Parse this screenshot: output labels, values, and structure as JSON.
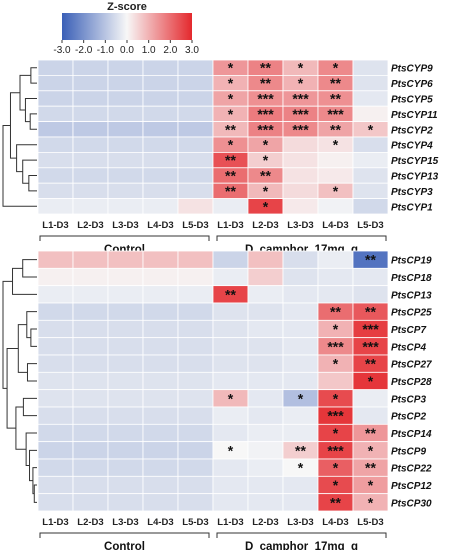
{
  "chart_data": [
    {
      "type": "heatmap",
      "title": "Z-score",
      "colorbar": {
        "ticks": [
          "-3.0",
          "-2.0",
          "-1.0",
          "0.0",
          "1.0",
          "2.0",
          "3.0"
        ],
        "range": [
          -3,
          3
        ],
        "colors": {
          "low": "#3a5fb7",
          "mid": "#f7f7f7",
          "high": "#e4282d"
        }
      },
      "columns": [
        "L1-D3",
        "L2-D3",
        "L3-D3",
        "L4-D3",
        "L5-D3",
        "L1-D3",
        "L2-D3",
        "L3-D3",
        "L4-D3",
        "L5-D3"
      ],
      "groups": [
        "Control",
        "D_camphor_17mg_g"
      ],
      "rows": [
        "PtsCYP9",
        "PtsCYP6",
        "PtsCYP5",
        "PtsCYP11",
        "PtsCYP2",
        "PtsCYP4",
        "PtsCYP15",
        "PtsCYP13",
        "PtsCYP3",
        "PtsCYP1"
      ],
      "values": [
        [
          -0.7,
          -0.7,
          -0.7,
          -0.7,
          -0.7,
          1.4,
          1.7,
          0.9,
          1.6,
          -0.4
        ],
        [
          -0.7,
          -0.7,
          -0.7,
          -0.7,
          -0.7,
          1.0,
          1.6,
          1.0,
          1.6,
          -0.4
        ],
        [
          -0.7,
          -0.7,
          -0.7,
          -0.7,
          -0.7,
          1.2,
          1.5,
          1.4,
          1.5,
          -0.3
        ],
        [
          -0.6,
          -0.6,
          -0.6,
          -0.6,
          -0.6,
          1.0,
          1.8,
          1.7,
          1.6,
          0.1
        ],
        [
          -0.9,
          -0.9,
          -0.9,
          -0.9,
          -0.9,
          0.9,
          1.7,
          1.6,
          1.2,
          0.7
        ],
        [
          -0.6,
          -0.6,
          -0.6,
          -0.6,
          -0.6,
          1.5,
          1.2,
          0.4,
          0.3,
          -0.5
        ],
        [
          -0.5,
          -0.5,
          -0.5,
          -0.5,
          -0.5,
          2.4,
          0.6,
          0.3,
          0.1,
          -0.2
        ],
        [
          -0.6,
          -0.6,
          -0.6,
          -0.6,
          -0.6,
          2.0,
          1.6,
          0.3,
          0.2,
          -0.4
        ],
        [
          -0.5,
          -0.5,
          -0.5,
          -0.5,
          -0.5,
          2.0,
          0.9,
          0.4,
          0.8,
          -0.4
        ],
        [
          -0.2,
          -0.2,
          -0.2,
          -0.2,
          0.3,
          -0.2,
          2.6,
          0.2,
          -0.1,
          -0.6
        ]
      ],
      "stars": [
        [
          "",
          "",
          "",
          "",
          "",
          "*",
          "**",
          "*",
          "*",
          ""
        ],
        [
          "",
          "",
          "",
          "",
          "",
          "*",
          "**",
          "*",
          "**",
          ""
        ],
        [
          "",
          "",
          "",
          "",
          "",
          "*",
          "***",
          "***",
          "**",
          ""
        ],
        [
          "",
          "",
          "",
          "",
          "",
          "*",
          "***",
          "***",
          "***",
          ""
        ],
        [
          "",
          "",
          "",
          "",
          "",
          "**",
          "***",
          "***",
          "**",
          "*"
        ],
        [
          "",
          "",
          "",
          "",
          "",
          "*",
          "*",
          "",
          "*",
          ""
        ],
        [
          "",
          "",
          "",
          "",
          "",
          "**",
          "*",
          "",
          "",
          ""
        ],
        [
          "",
          "",
          "",
          "",
          "",
          "**",
          "**",
          "",
          "",
          ""
        ],
        [
          "",
          "",
          "",
          "",
          "",
          "**",
          "*",
          "",
          "*",
          ""
        ],
        [
          "",
          "",
          "",
          "",
          "",
          "",
          "*",
          "",
          "",
          ""
        ]
      ]
    },
    {
      "type": "heatmap",
      "columns": [
        "L1-D3",
        "L2-D3",
        "L3-D3",
        "L4-D3",
        "L5-D3",
        "L1-D3",
        "L2-D3",
        "L3-D3",
        "L4-D3",
        "L5-D3"
      ],
      "groups": [
        "Control",
        "D_camphor_17mg_g"
      ],
      "rows": [
        "PtsCP19",
        "PtsCP18",
        "PtsCP13",
        "PtsCP25",
        "PtsCP7",
        "PtsCP4",
        "PtsCP27",
        "PtsCP28",
        "PtsCP3",
        "PtsCP2",
        "PtsCP14",
        "PtsCP9",
        "PtsCP22",
        "PtsCP12",
        "PtsCP30"
      ],
      "values": [
        [
          0.8,
          0.8,
          0.8,
          0.8,
          0.8,
          -0.7,
          0.8,
          -0.5,
          -0.2,
          -2.6
        ],
        [
          0.1,
          0.1,
          0.1,
          0.1,
          0.1,
          -0.2,
          0.6,
          -0.4,
          -0.3,
          -0.3
        ],
        [
          -0.2,
          -0.2,
          -0.2,
          -0.2,
          -0.2,
          2.6,
          -0.2,
          -0.3,
          -0.3,
          -0.4
        ],
        [
          -0.6,
          -0.6,
          -0.6,
          -0.6,
          -0.6,
          -0.4,
          -0.4,
          -0.3,
          2.0,
          2.3
        ],
        [
          -0.5,
          -0.5,
          -0.5,
          -0.5,
          -0.5,
          -0.4,
          -0.3,
          -0.3,
          1.0,
          2.7
        ],
        [
          -0.5,
          -0.5,
          -0.5,
          -0.5,
          -0.5,
          -0.4,
          -0.4,
          -0.3,
          1.6,
          2.6
        ],
        [
          -0.5,
          -0.5,
          -0.5,
          -0.5,
          -0.5,
          -0.4,
          -0.4,
          -0.3,
          1.0,
          2.6
        ],
        [
          -0.4,
          -0.4,
          -0.4,
          -0.4,
          -0.4,
          -0.3,
          -0.3,
          -0.3,
          0.7,
          2.8
        ],
        [
          -0.4,
          -0.4,
          -0.4,
          -0.4,
          -0.4,
          0.9,
          -0.3,
          -1.1,
          2.5,
          -0.2
        ],
        [
          -0.5,
          -0.5,
          -0.5,
          -0.5,
          -0.5,
          -0.2,
          -0.3,
          -0.2,
          2.8,
          -0.3
        ],
        [
          -0.6,
          -0.6,
          -0.6,
          -0.6,
          -0.6,
          -0.3,
          -0.2,
          -0.2,
          2.6,
          1.4
        ],
        [
          -0.7,
          -0.7,
          -0.7,
          -0.7,
          -0.7,
          0.0,
          -0.1,
          0.6,
          2.6,
          1.0
        ],
        [
          -0.6,
          -0.6,
          -0.6,
          -0.6,
          -0.6,
          -0.3,
          -0.2,
          0.0,
          2.2,
          1.2
        ],
        [
          -0.5,
          -0.5,
          -0.5,
          -0.5,
          -0.5,
          -0.3,
          -0.3,
          -0.3,
          2.5,
          1.3
        ],
        [
          -0.5,
          -0.5,
          -0.5,
          -0.5,
          -0.5,
          -0.3,
          -0.3,
          -0.3,
          2.6,
          1.0
        ]
      ],
      "stars": [
        [
          "",
          "",
          "",
          "",
          "",
          "",
          "",
          "",
          "",
          "**"
        ],
        [
          "",
          "",
          "",
          "",
          "",
          "",
          "",
          "",
          "",
          ""
        ],
        [
          "",
          "",
          "",
          "",
          "",
          "**",
          "",
          "",
          "",
          ""
        ],
        [
          "",
          "",
          "",
          "",
          "",
          "",
          "",
          "",
          "**",
          "**"
        ],
        [
          "",
          "",
          "",
          "",
          "",
          "",
          "",
          "",
          "*",
          "***"
        ],
        [
          "",
          "",
          "",
          "",
          "",
          "",
          "",
          "",
          "***",
          "***"
        ],
        [
          "",
          "",
          "",
          "",
          "",
          "",
          "",
          "",
          "*",
          "**"
        ],
        [
          "",
          "",
          "",
          "",
          "",
          "",
          "",
          "",
          "",
          "*"
        ],
        [
          "",
          "",
          "",
          "",
          "",
          "*",
          "",
          "*",
          "*",
          ""
        ],
        [
          "",
          "",
          "",
          "",
          "",
          "",
          "",
          "",
          "***",
          ""
        ],
        [
          "",
          "",
          "",
          "",
          "",
          "",
          "",
          "",
          "*",
          "**"
        ],
        [
          "",
          "",
          "",
          "",
          "",
          "*",
          "",
          "**",
          "***",
          "*"
        ],
        [
          "",
          "",
          "",
          "",
          "",
          "",
          "",
          "*",
          "*",
          "**"
        ],
        [
          "",
          "",
          "",
          "",
          "",
          "",
          "",
          "",
          "*",
          "*"
        ],
        [
          "",
          "",
          "",
          "",
          "",
          "",
          "",
          "",
          "**",
          "*"
        ]
      ]
    }
  ]
}
